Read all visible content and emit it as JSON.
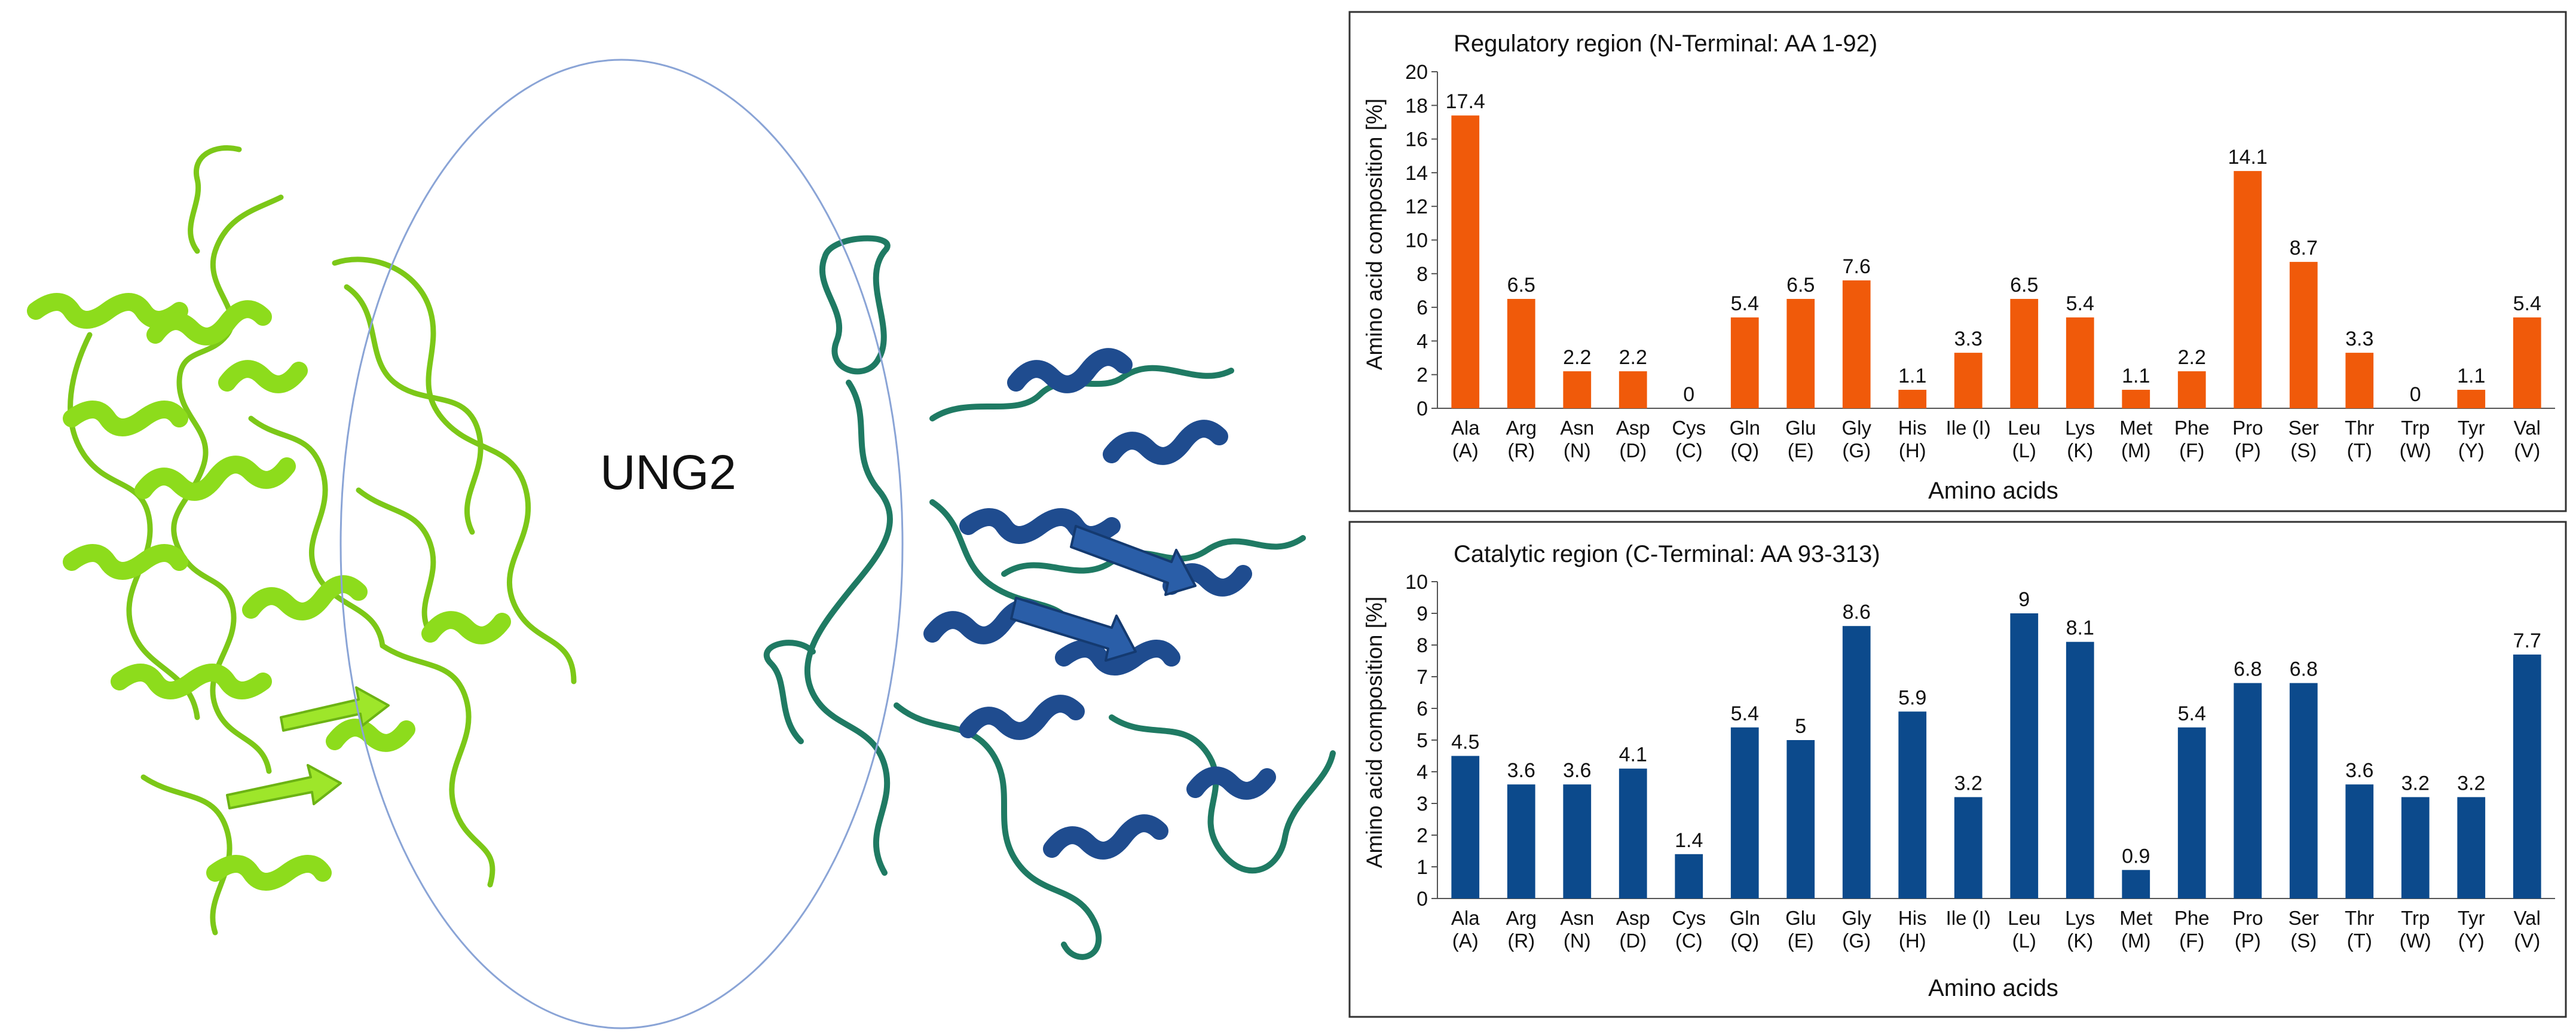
{
  "protein_panel": {
    "center_label": "UNG2",
    "colors": {
      "regulatory_ribbon": "#8ddc1c",
      "catalytic_ribbon": "#1f4c8f",
      "catalytic_coil": "#1f7a63",
      "ring": "#8aa4d6"
    }
  },
  "chart_data": [
    {
      "type": "bar",
      "title": "Regulatory region  (N-Terminal: AA 1-92)",
      "xlabel": "Amino acids",
      "ylabel": "Amino acid composition [%]",
      "ylim": [
        0,
        20
      ],
      "yticks": [
        0,
        2,
        4,
        6,
        8,
        10,
        12,
        14,
        16,
        18,
        20
      ],
      "grid": false,
      "color": "#f05a0a",
      "categories": [
        "Ala (A)",
        "Arg (R)",
        "Asn (N)",
        "Asp (D)",
        "Cys (C)",
        "Gln (Q)",
        "Glu (E)",
        "Gly (G)",
        "His (H)",
        "Ile (I)",
        "Leu (L)",
        "Lys (K)",
        "Met (M)",
        "Phe (F)",
        "Pro (P)",
        "Ser (S)",
        "Thr (T)",
        "Trp (W)",
        "Tyr (Y)",
        "Val (V)"
      ],
      "category_lines": [
        [
          "Ala",
          "(A)"
        ],
        [
          "Arg",
          "(R)"
        ],
        [
          "Asn",
          "(N)"
        ],
        [
          "Asp",
          "(D)"
        ],
        [
          "Cys",
          "(C)"
        ],
        [
          "Gln",
          "(Q)"
        ],
        [
          "Glu",
          "(E)"
        ],
        [
          "Gly",
          "(G)"
        ],
        [
          "His",
          "(H)"
        ],
        [
          "Ile (I)",
          ""
        ],
        [
          "Leu",
          "(L)"
        ],
        [
          "Lys",
          "(K)"
        ],
        [
          "Met",
          "(M)"
        ],
        [
          "Phe",
          "(F)"
        ],
        [
          "Pro",
          "(P)"
        ],
        [
          "Ser",
          "(S)"
        ],
        [
          "Thr",
          "(T)"
        ],
        [
          "Trp",
          "(W)"
        ],
        [
          "Tyr",
          "(Y)"
        ],
        [
          "Val",
          "(V)"
        ]
      ],
      "values": [
        17.4,
        6.5,
        2.2,
        2.2,
        0,
        5.4,
        6.5,
        7.6,
        1.1,
        3.3,
        6.5,
        5.4,
        1.1,
        2.2,
        14.1,
        8.7,
        3.3,
        0,
        1.1,
        5.4
      ]
    },
    {
      "type": "bar",
      "title": "Catalytic region  (C-Terminal: AA 93-313)",
      "xlabel": "Amino acids",
      "ylabel": "Amino acid composition [%]",
      "ylim": [
        0,
        10
      ],
      "yticks": [
        0,
        1,
        2,
        3,
        4,
        5,
        6,
        7,
        8,
        9,
        10
      ],
      "grid": false,
      "color": "#0c4a8c",
      "categories": [
        "Ala (A)",
        "Arg (R)",
        "Asn (N)",
        "Asp (D)",
        "Cys (C)",
        "Gln (Q)",
        "Glu (E)",
        "Gly (G)",
        "His (H)",
        "Ile (I)",
        "Leu (L)",
        "Lys (K)",
        "Met (M)",
        "Phe (F)",
        "Pro (P)",
        "Ser (S)",
        "Thr (T)",
        "Trp (W)",
        "Tyr (Y)",
        "Val (V)"
      ],
      "category_lines": [
        [
          "Ala",
          "(A)"
        ],
        [
          "Arg",
          "(R)"
        ],
        [
          "Asn",
          "(N)"
        ],
        [
          "Asp",
          "(D)"
        ],
        [
          "Cys",
          "(C)"
        ],
        [
          "Gln",
          "(Q)"
        ],
        [
          "Glu",
          "(E)"
        ],
        [
          "Gly",
          "(G)"
        ],
        [
          "His",
          "(H)"
        ],
        [
          "Ile (I)",
          ""
        ],
        [
          "Leu",
          "(L)"
        ],
        [
          "Lys",
          "(K)"
        ],
        [
          "Met",
          "(M)"
        ],
        [
          "Phe",
          "(F)"
        ],
        [
          "Pro",
          "(P)"
        ],
        [
          "Ser",
          "(S)"
        ],
        [
          "Thr",
          "(T)"
        ],
        [
          "Trp",
          "(W)"
        ],
        [
          "Tyr",
          "(Y)"
        ],
        [
          "Val",
          "(V)"
        ]
      ],
      "values": [
        4.5,
        3.6,
        3.6,
        4.1,
        1.4,
        5.4,
        5,
        8.6,
        5.9,
        3.2,
        9,
        8.1,
        0.9,
        5.4,
        6.8,
        6.8,
        3.6,
        3.2,
        3.2,
        7.7
      ]
    }
  ]
}
